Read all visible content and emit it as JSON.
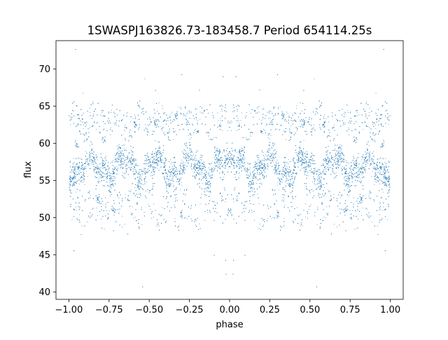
{
  "chart_data": {
    "type": "scatter",
    "title": "1SWASPJ163826.73-183458.7 Period 654114.25s",
    "xlabel": "phase",
    "ylabel": "flux",
    "xlim": [
      -1.08,
      1.08
    ],
    "ylim": [
      39.0,
      73.8
    ],
    "xticks": [
      -1.0,
      -0.75,
      -0.5,
      -0.25,
      0.0,
      0.25,
      0.5,
      0.75,
      1.0
    ],
    "xtick_labels": [
      "−1.00",
      "−0.75",
      "−0.50",
      "−0.25",
      "0.00",
      "0.25",
      "0.50",
      "0.75",
      "1.00"
    ],
    "yticks": [
      40,
      45,
      50,
      55,
      60,
      65,
      70
    ],
    "ytick_labels": [
      "40",
      "45",
      "50",
      "55",
      "60",
      "65",
      "70"
    ],
    "grid": false,
    "legend": "none",
    "marker_color": "#1f77b4",
    "series": [
      {
        "phase_range": [
          -1.0,
          1.0
        ],
        "symmetric_about_zero": true,
        "points_per_half": 5200,
        "flux_baseline": 56.8,
        "flux_scatter": 1.4,
        "flux_min": 40.6,
        "flux_max": 72.8,
        "upper_branch_flux": [
          61.0,
          65.0
        ],
        "lower_branch_flux": [
          49.0,
          54.0
        ],
        "dense_clumps": [
          {
            "phase": 0.33,
            "flux": 63.8
          },
          {
            "phase": 0.46,
            "flux": 62.8
          },
          {
            "phase": 0.59,
            "flux": 62.6
          },
          {
            "phase": 0.78,
            "flux": 60.6
          },
          {
            "phase": 0.95,
            "flux": 60.0
          },
          {
            "phase": 0.06,
            "flux": 62.5
          },
          {
            "phase": 0.2,
            "flux": 61.5
          },
          {
            "phase": 0.3,
            "flux": 50.5
          },
          {
            "phase": 0.72,
            "flux": 51.0
          },
          {
            "phase": 0.82,
            "flux": 52.5
          }
        ]
      }
    ]
  }
}
